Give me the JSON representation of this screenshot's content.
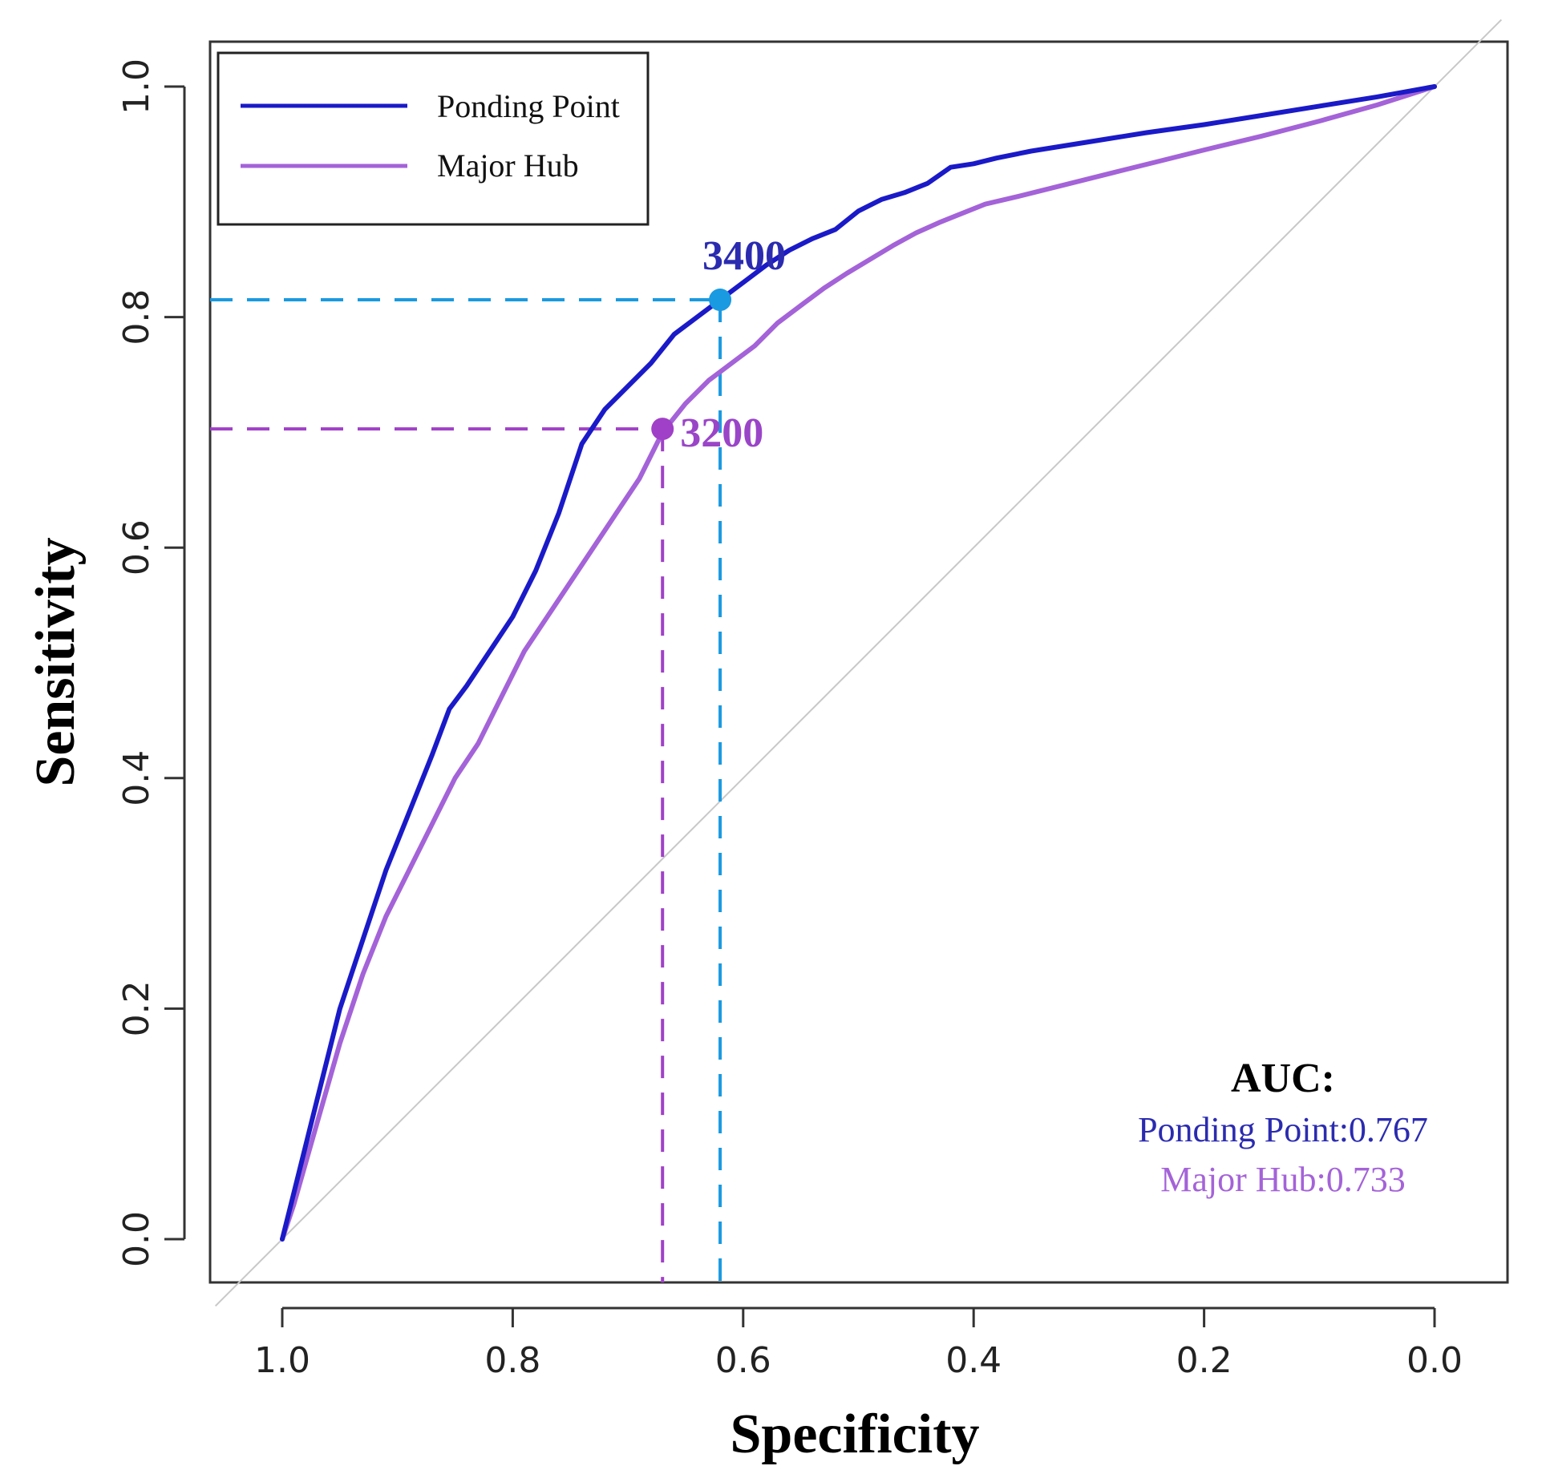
{
  "chart_data": {
    "type": "line",
    "title": "",
    "xlabel": "Specificity",
    "ylabel": "Sensitivity",
    "xlim": [
      1.0,
      0.0
    ],
    "ylim": [
      0.0,
      1.0
    ],
    "x_ticks": [
      "1.0",
      "0.8",
      "0.6",
      "0.4",
      "0.2",
      "0.0"
    ],
    "x_tick_values": [
      1.0,
      0.8,
      0.6,
      0.4,
      0.2,
      0.0
    ],
    "y_ticks": [
      "0.0",
      "0.2",
      "0.4",
      "0.6",
      "0.8",
      "1.0"
    ],
    "y_tick_values": [
      0.0,
      0.2,
      0.4,
      0.6,
      0.8,
      1.0
    ],
    "legend": {
      "placement": "top-left",
      "entries": [
        {
          "name": "Ponding Point",
          "color": "#1a1ac8"
        },
        {
          "name": "Major Hub",
          "color": "#a463d8"
        }
      ]
    },
    "series": [
      {
        "name": "Ponding Point",
        "color": "#1a1ac8",
        "x": [
          1.0,
          0.99,
          0.97,
          0.95,
          0.93,
          0.91,
          0.89,
          0.87,
          0.855,
          0.84,
          0.82,
          0.8,
          0.78,
          0.76,
          0.74,
          0.72,
          0.7,
          0.68,
          0.66,
          0.64,
          0.62,
          0.6,
          0.58,
          0.56,
          0.54,
          0.52,
          0.5,
          0.48,
          0.46,
          0.44,
          0.42,
          0.4,
          0.38,
          0.35,
          0.3,
          0.25,
          0.2,
          0.15,
          0.1,
          0.05,
          0.0
        ],
        "y": [
          0.0,
          0.04,
          0.12,
          0.2,
          0.26,
          0.32,
          0.37,
          0.42,
          0.46,
          0.48,
          0.51,
          0.54,
          0.58,
          0.63,
          0.69,
          0.72,
          0.74,
          0.76,
          0.785,
          0.8,
          0.815,
          0.83,
          0.845,
          0.858,
          0.868,
          0.876,
          0.892,
          0.902,
          0.908,
          0.916,
          0.93,
          0.933,
          0.938,
          0.944,
          0.952,
          0.96,
          0.967,
          0.975,
          0.983,
          0.991,
          1.0
        ]
      },
      {
        "name": "Major Hub",
        "color": "#a463d8",
        "x": [
          1.0,
          0.99,
          0.97,
          0.95,
          0.93,
          0.91,
          0.89,
          0.87,
          0.85,
          0.83,
          0.81,
          0.79,
          0.77,
          0.75,
          0.73,
          0.71,
          0.69,
          0.67,
          0.65,
          0.63,
          0.61,
          0.59,
          0.57,
          0.55,
          0.53,
          0.51,
          0.49,
          0.47,
          0.45,
          0.43,
          0.41,
          0.39,
          0.36,
          0.32,
          0.28,
          0.24,
          0.2,
          0.15,
          0.1,
          0.05,
          0.0
        ],
        "y": [
          0.0,
          0.03,
          0.1,
          0.17,
          0.23,
          0.28,
          0.32,
          0.36,
          0.4,
          0.43,
          0.47,
          0.51,
          0.54,
          0.57,
          0.6,
          0.63,
          0.66,
          0.7,
          0.725,
          0.745,
          0.76,
          0.775,
          0.795,
          0.81,
          0.825,
          0.838,
          0.85,
          0.862,
          0.873,
          0.882,
          0.89,
          0.898,
          0.905,
          0.915,
          0.925,
          0.935,
          0.945,
          0.957,
          0.97,
          0.984,
          1.0
        ]
      }
    ],
    "reference_line": {
      "from": [
        1.0,
        0.0
      ],
      "to": [
        0.0,
        1.0
      ],
      "color": "#c8c8c8"
    },
    "cutoffs": [
      {
        "label": "3400",
        "series": "Ponding Point",
        "x": 0.62,
        "y": 0.815,
        "color": "#1a9ae0",
        "label_color": "#2b2bb0"
      },
      {
        "label": "3200",
        "series": "Major Hub",
        "x": 0.67,
        "y": 0.703,
        "color": "#a040c8",
        "label_color": "#9a45c8"
      }
    ],
    "auc": {
      "title": "AUC:",
      "lines": [
        {
          "text": "Ponding Point:0.767",
          "color": "#2b2bb0"
        },
        {
          "text": "Major Hub:0.733",
          "color": "#a463d8"
        }
      ]
    }
  }
}
